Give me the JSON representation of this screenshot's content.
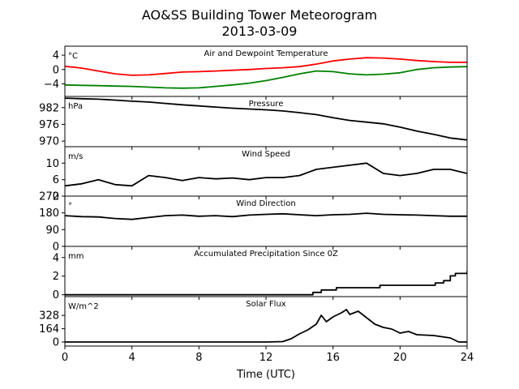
{
  "title_line1": "AO&SS Building Tower Meteorogram",
  "title_line2": "2013-03-09",
  "xlabel": "Time (UTC)",
  "chart_data": {
    "type": "line",
    "x_range": [
      0,
      24
    ],
    "x_ticks": [
      0,
      4,
      8,
      12,
      16,
      20,
      24
    ],
    "x_tick_labels": [
      "0",
      "4",
      "8",
      "12",
      "16",
      "20",
      "24"
    ],
    "panels": [
      {
        "title": "Air and Dewpoint Temperature",
        "unit": "°C",
        "ylim": [
          -7.5,
          6.5
        ],
        "yticks": [
          4,
          0,
          -4
        ],
        "ytick_labels": [
          "4",
          "0",
          "−4"
        ],
        "series": [
          {
            "color": "#ff0000",
            "x": [
              0,
              1,
              2,
              3,
              4,
              5,
              6,
              7,
              8,
              9,
              10,
              11,
              12,
              13,
              14,
              15,
              16,
              17,
              18,
              19,
              20,
              21,
              22,
              23,
              24
            ],
            "values": [
              0.9,
              0.4,
              -0.4,
              -1.2,
              -1.6,
              -1.5,
              -1.1,
              -0.7,
              -0.6,
              -0.4,
              -0.2,
              0.0,
              0.3,
              0.5,
              0.8,
              1.5,
              2.4,
              2.9,
              3.3,
              3.2,
              2.9,
              2.5,
              2.2,
              2.0,
              2.0
            ]
          },
          {
            "color": "#008000",
            "x": [
              0,
              1,
              2,
              3,
              4,
              5,
              6,
              7,
              8,
              9,
              10,
              11,
              12,
              13,
              14,
              15,
              16,
              17,
              18,
              19,
              20,
              21,
              22,
              23,
              24
            ],
            "values": [
              -4.3,
              -4.4,
              -4.5,
              -4.6,
              -4.7,
              -4.9,
              -5.1,
              -5.2,
              -5.1,
              -4.7,
              -4.3,
              -3.8,
              -3.1,
              -2.2,
              -1.2,
              -0.4,
              -0.6,
              -1.2,
              -1.5,
              -1.3,
              -0.9,
              0.0,
              0.5,
              0.7,
              0.8
            ]
          }
        ]
      },
      {
        "title": "Pressure",
        "unit": "hPa",
        "ylim": [
          968,
          986
        ],
        "yticks": [
          982,
          976,
          970
        ],
        "ytick_labels": [
          "982",
          "976",
          "970"
        ],
        "series": [
          {
            "color": "#000000",
            "x": [
              0,
              1,
              2,
              3,
              4,
              5,
              6,
              7,
              8,
              9,
              10,
              11,
              12,
              13,
              14,
              15,
              16,
              17,
              18,
              19,
              20,
              21,
              22,
              23,
              24
            ],
            "values": [
              985.4,
              985.2,
              985.0,
              984.7,
              984.3,
              984.0,
              983.5,
              983.0,
              982.6,
              982.2,
              981.8,
              981.5,
              981.2,
              980.8,
              980.2,
              979.5,
              978.4,
              977.4,
              976.8,
              976.2,
              975.0,
              973.6,
              972.4,
              971.1,
              970.4
            ]
          }
        ]
      },
      {
        "title": "Wind Speed",
        "unit": "m/s",
        "ylim": [
          2,
          14
        ],
        "yticks": [
          10,
          6,
          2
        ],
        "ytick_labels": [
          "10",
          "6",
          "2"
        ],
        "series": [
          {
            "color": "#000000",
            "x": [
              0,
              1,
              2,
              3,
              4,
              5,
              6,
              7,
              8,
              9,
              10,
              11,
              12,
              13,
              14,
              15,
              16,
              17,
              18,
              19,
              20,
              21,
              22,
              23,
              24
            ],
            "values": [
              4.5,
              5.0,
              6.0,
              4.8,
              4.5,
              7.0,
              6.5,
              5.8,
              6.5,
              6.2,
              6.4,
              6.0,
              6.5,
              6.5,
              7.0,
              8.5,
              9.0,
              9.5,
              10.0,
              7.5,
              7.0,
              7.5,
              8.5,
              8.5,
              7.5
            ]
          }
        ]
      },
      {
        "title": "Wind Direction",
        "unit": "°",
        "ylim": [
          0,
          270
        ],
        "yticks": [
          270,
          180,
          90,
          0
        ],
        "ytick_labels": [
          "270",
          "180",
          "90",
          "0"
        ],
        "series": [
          {
            "color": "#000000",
            "x": [
              0,
              1,
              2,
              3,
              4,
              5,
              6,
              7,
              8,
              9,
              10,
              11,
              12,
              13,
              14,
              15,
              16,
              17,
              18,
              19,
              20,
              21,
              22,
              23,
              24
            ],
            "values": [
              165,
              160,
              158,
              150,
              145,
              155,
              165,
              168,
              162,
              165,
              160,
              168,
              172,
              175,
              170,
              165,
              170,
              172,
              178,
              172,
              170,
              168,
              165,
              162,
              162
            ]
          }
        ]
      },
      {
        "title": "Accumulated Precipitation Since 0Z",
        "unit": "mm",
        "ylim": [
          -0.2,
          5.2
        ],
        "yticks": [
          4,
          2,
          0
        ],
        "ytick_labels": [
          "4",
          "2",
          "0"
        ],
        "series": [
          {
            "color": "#000000",
            "step": true,
            "x": [
              0,
              14.8,
              15.3,
              16.2,
              18.8,
              20.7,
              22.1,
              22.6,
              23.0,
              23.3,
              24.0
            ],
            "values": [
              0,
              0.25,
              0.51,
              0.76,
              1.02,
              1.02,
              1.27,
              1.52,
              2.03,
              2.29,
              2.54
            ]
          }
        ]
      },
      {
        "title": "Solar Flux",
        "unit": "W/m^2",
        "ylim": [
          -50,
          560
        ],
        "yticks": [
          328,
          164,
          0
        ],
        "ytick_labels": [
          "328",
          "164",
          "0"
        ],
        "series": [
          {
            "color": "#000000",
            "x": [
              0,
              12,
              13,
              13.5,
              14,
              14.5,
              15,
              15.3,
              15.6,
              16.0,
              16.5,
              16.8,
              17.0,
              17.5,
              18.0,
              18.5,
              19.0,
              19.5,
              20.0,
              20.5,
              21.0,
              22.0,
              23.0,
              23.5,
              24.0
            ],
            "values": [
              0,
              0,
              5,
              40,
              100,
              150,
              220,
              330,
              250,
              310,
              360,
              400,
              340,
              380,
              300,
              220,
              180,
              160,
              110,
              130,
              90,
              80,
              50,
              0,
              0
            ]
          }
        ]
      }
    ]
  }
}
